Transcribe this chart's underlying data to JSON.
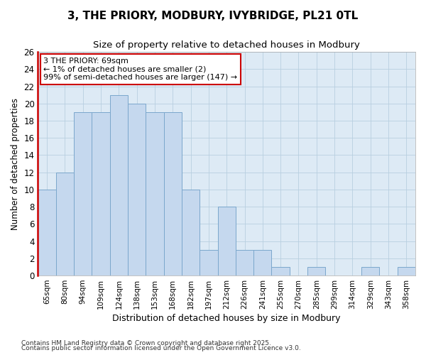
{
  "title_line1": "3, THE PRIORY, MODBURY, IVYBRIDGE, PL21 0TL",
  "title_line2": "Size of property relative to detached houses in Modbury",
  "xlabel": "Distribution of detached houses by size in Modbury",
  "ylabel": "Number of detached properties",
  "categories": [
    "65sqm",
    "80sqm",
    "94sqm",
    "109sqm",
    "124sqm",
    "138sqm",
    "153sqm",
    "168sqm",
    "182sqm",
    "197sqm",
    "212sqm",
    "226sqm",
    "241sqm",
    "255sqm",
    "270sqm",
    "285sqm",
    "299sqm",
    "314sqm",
    "329sqm",
    "343sqm",
    "358sqm"
  ],
  "values": [
    10,
    12,
    19,
    19,
    21,
    20,
    19,
    19,
    10,
    3,
    8,
    3,
    3,
    1,
    0,
    1,
    0,
    0,
    1,
    0,
    1
  ],
  "bar_color": "#c5d8ee",
  "bar_edgecolor": "#7ba7cc",
  "bar_linewidth": 0.7,
  "red_color": "#cc0000",
  "annotation_text_line1": "3 THE PRIORY: 69sqm",
  "annotation_text_line2": "← 1% of detached houses are smaller (2)",
  "annotation_text_line3": "99% of semi-detached houses are larger (147) →",
  "ylim": [
    0,
    26
  ],
  "yticks": [
    0,
    2,
    4,
    6,
    8,
    10,
    12,
    14,
    16,
    18,
    20,
    22,
    24,
    26
  ],
  "grid_color": "#b8cfe0",
  "plot_bg_color": "#ddeaf5",
  "fig_bg_color": "#ffffff",
  "footnote_line1": "Contains HM Land Registry data © Crown copyright and database right 2025.",
  "footnote_line2": "Contains public sector information licensed under the Open Government Licence v3.0."
}
